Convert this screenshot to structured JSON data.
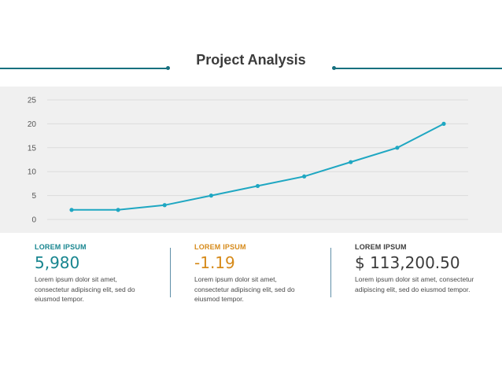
{
  "page": {
    "title": "Project Analysis",
    "accent_color": "#17707f",
    "panel_color": "#f0f0f0"
  },
  "chart_data": {
    "type": "line",
    "title": "",
    "xlabel": "",
    "ylabel": "",
    "ylim": [
      0,
      25
    ],
    "yticks": [
      "0",
      "5",
      "10",
      "15",
      "20",
      "25"
    ],
    "grid": true,
    "line_color": "#1fa7c2",
    "series": [
      {
        "values": [
          2,
          2,
          3,
          5,
          7,
          9,
          12,
          15,
          20
        ]
      }
    ]
  },
  "stats": [
    {
      "label": "LOREM IPSUM",
      "value": "5,980",
      "color": "#17858f",
      "description": "Lorem ipsum dolor sit amet, consectetur adipiscing elit, sed do eiusmod tempor."
    },
    {
      "label": "LOREM IPSUM",
      "value": "-1.19",
      "color": "#d68a1a",
      "description": "Lorem ipsum dolor sit amet, consectetur adipiscing elit, sed do eiusmod tempor."
    },
    {
      "label": "LOREM IPSUM",
      "value": "$ 113,200.50",
      "color": "#3b3b3b",
      "description": "Lorem ipsum dolor sit amet, consectetur adipiscing elit, sed do eiusmod tempor."
    }
  ]
}
